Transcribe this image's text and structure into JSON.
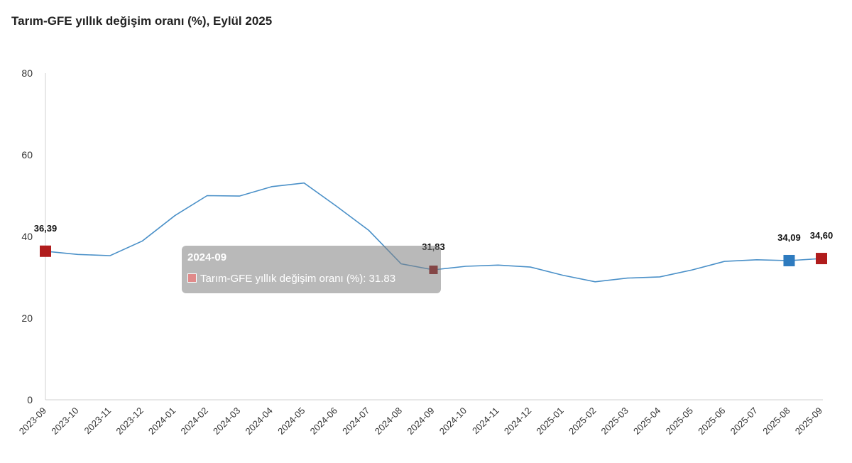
{
  "title": "Tarım-GFE yıllık değişim oranı (%), Eylül 2025",
  "colors": {
    "line": "#4a90c8",
    "highlight_red": "#b01c1c",
    "selected_dark": "#8b0000",
    "highlight_blue": "#2e7bbf",
    "axis": "#d0d0d0"
  },
  "chart_data": {
    "type": "line",
    "title": "Tarım-GFE yıllık değişim oranı (%), Eylül 2025",
    "categories": [
      "2023-09",
      "2023-10",
      "2023-11",
      "2023-12",
      "2024-01",
      "2024-02",
      "2024-03",
      "2024-04",
      "2024-05",
      "2024-06",
      "2024-07",
      "2024-08",
      "2024-09",
      "2024-10",
      "2024-11",
      "2024-12",
      "2025-01",
      "2025-02",
      "2025-03",
      "2025-04",
      "2025-05",
      "2025-06",
      "2025-07",
      "2025-08",
      "2025-09"
    ],
    "series": [
      {
        "name": "Tarım-GFE yıllık değişim oranı (%)",
        "values": [
          36.39,
          35.6,
          35.3,
          38.9,
          45.1,
          50.0,
          49.9,
          52.2,
          53.1,
          47.4,
          41.5,
          33.3,
          31.83,
          32.7,
          33.0,
          32.5,
          30.5,
          28.9,
          29.8,
          30.1,
          31.8,
          33.9,
          34.3,
          34.09,
          34.6
        ]
      }
    ],
    "ylim": [
      0,
      80
    ],
    "yticks": [
      0,
      20,
      40,
      60,
      80
    ],
    "grid": false,
    "highlighted_points": [
      {
        "category": "2023-09",
        "label": "36,39",
        "color": "red"
      },
      {
        "category": "2024-09",
        "label": "31,83",
        "color": "dark"
      },
      {
        "category": "2025-08",
        "label": "34,09",
        "color": "blue"
      },
      {
        "category": "2025-09",
        "label": "34,60",
        "color": "red"
      }
    ]
  },
  "tooltip": {
    "title": "2024-09",
    "text": "Tarım-GFE yıllık değişim oranı (%): 31.83"
  }
}
